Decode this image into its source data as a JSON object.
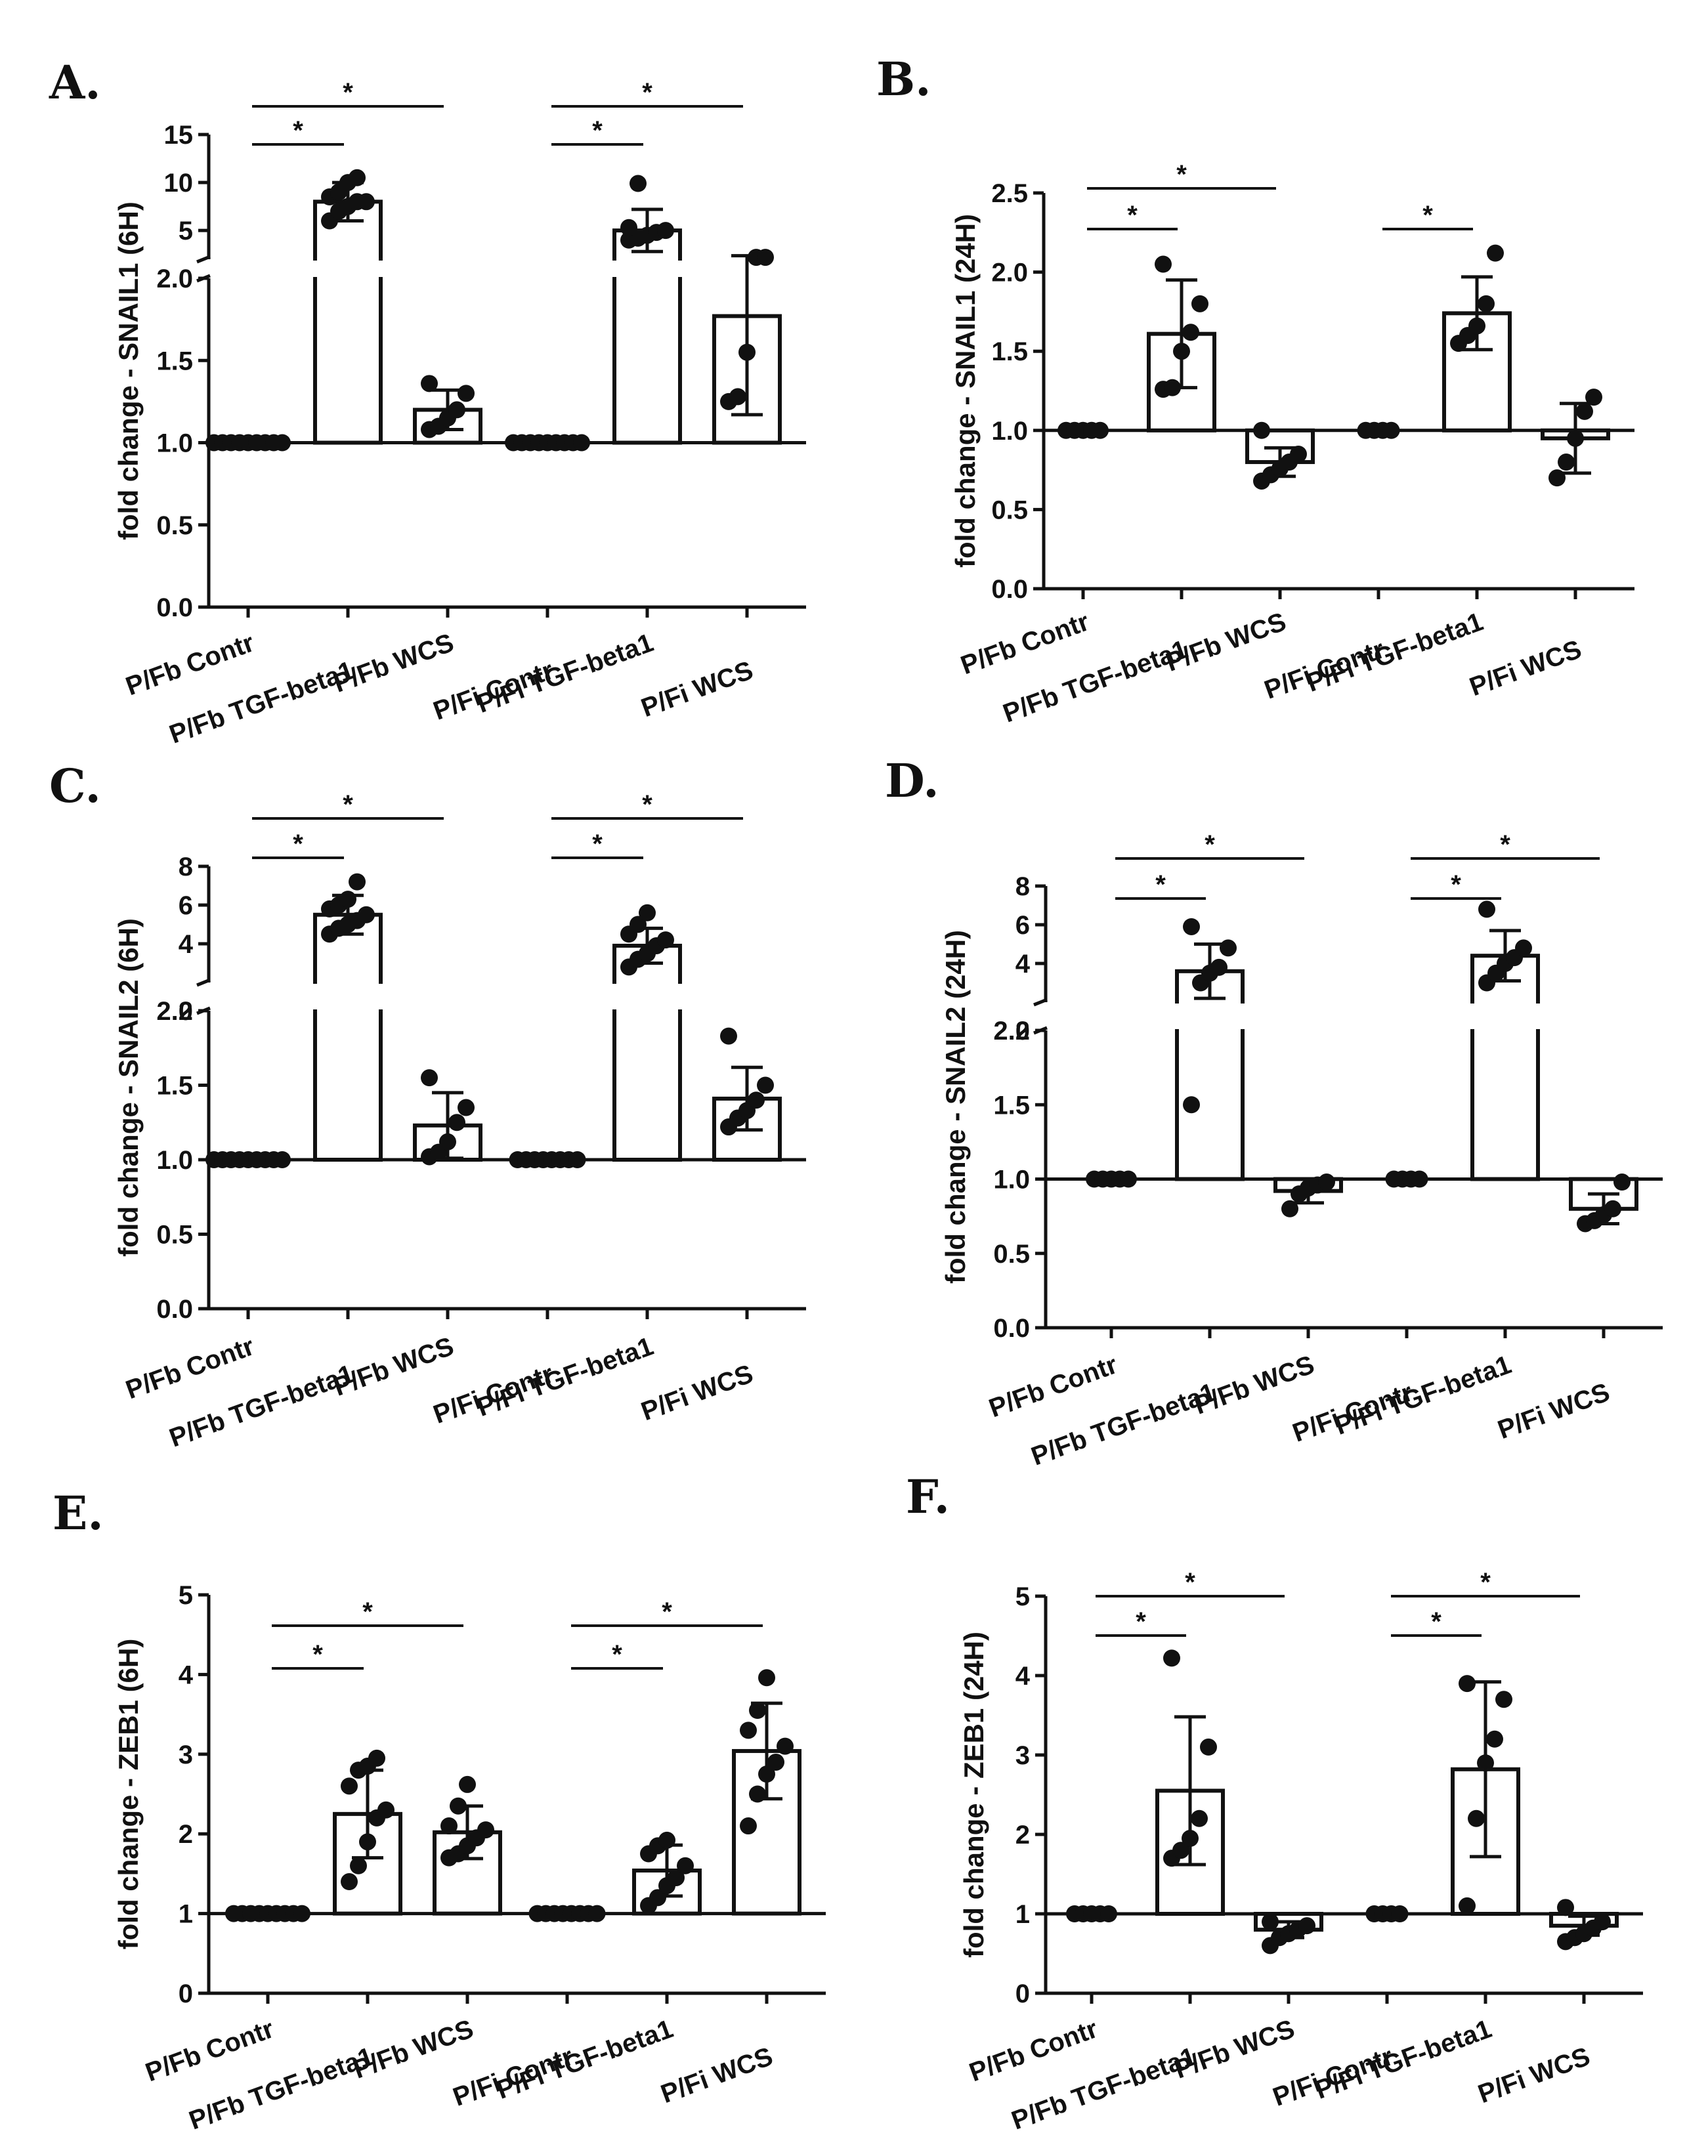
{
  "figure": {
    "domain": "Chart",
    "description": "Six bar charts of fold change (mean ± SD with individual points)"
  },
  "chart_data": [
    {
      "type": "bar",
      "panel": "A.",
      "ylabel": "fold change - SNAIL1 (6H)",
      "categories": [
        "P/Fb Contr",
        "P/Fb TGF-beta1",
        "P/Fb WCS",
        "P/Fi Contr",
        "P/Fi TGF-beta1",
        "P/Fi WCS"
      ],
      "values": [
        1.0,
        8.0,
        1.2,
        1.0,
        5.0,
        1.77
      ],
      "errors": [
        0,
        2.0,
        0.12,
        0,
        2.2,
        0.6
      ],
      "points": [
        [
          1,
          1,
          1,
          1,
          1,
          1,
          1,
          1,
          1
        ],
        [
          6,
          7,
          7.5,
          8,
          8,
          8.5,
          9,
          10,
          10.5
        ],
        [
          1.08,
          1.1,
          1.15,
          1.2,
          1.3,
          1.36
        ],
        [
          1,
          1,
          1,
          1,
          1,
          1,
          1,
          1,
          1
        ],
        [
          4,
          4.2,
          4.5,
          4.8,
          5,
          5.3,
          9.9
        ],
        [
          1.25,
          1.28,
          1.55,
          2.2,
          2.2
        ]
      ],
      "axis": {
        "broken": true,
        "lower_ticks": [
          "0.0",
          "0.5",
          "1.0",
          "1.5",
          "2.0"
        ],
        "lower_range": [
          0,
          2
        ],
        "upper_ticks": [
          "5",
          "10",
          "15"
        ],
        "upper_range": [
          2,
          15
        ]
      },
      "significance": [
        {
          "from": 0,
          "to": 1,
          "label": "*"
        },
        {
          "from": 0,
          "to": 2,
          "label": "*"
        },
        {
          "from": 3,
          "to": 4,
          "label": "*"
        },
        {
          "from": 3,
          "to": 5,
          "label": "*"
        }
      ]
    },
    {
      "type": "bar",
      "panel": "B.",
      "ylabel": "fold change - SNAIL1 (24H)",
      "categories": [
        "P/Fb Contr",
        "P/Fb TGF-beta1",
        "P/Fb WCS",
        "P/Fi Contr",
        "P/Fi TGF-beta1",
        "P/Fi WCS"
      ],
      "values": [
        1.0,
        1.61,
        0.8,
        1.0,
        1.74,
        0.95
      ],
      "errors": [
        0,
        0.34,
        0.09,
        0,
        0.23,
        0.22
      ],
      "points": [
        [
          1,
          1,
          1,
          1,
          1
        ],
        [
          1.26,
          1.27,
          1.5,
          1.62,
          1.8,
          2.05
        ],
        [
          0.68,
          0.72,
          0.76,
          0.8,
          0.85,
          1.0
        ],
        [
          1,
          1,
          1,
          1
        ],
        [
          1.55,
          1.6,
          1.66,
          1.8,
          2.12
        ],
        [
          0.7,
          0.8,
          0.95,
          1.12,
          1.21
        ]
      ],
      "axis": {
        "broken": false,
        "ticks": [
          "0.0",
          "0.5",
          "1.0",
          "1.5",
          "2.0",
          "2.5"
        ],
        "range": [
          0,
          2.5
        ]
      },
      "significance": [
        {
          "from": 0,
          "to": 1,
          "label": "*"
        },
        {
          "from": 0,
          "to": 2,
          "label": "*"
        },
        {
          "from": 3,
          "to": 4,
          "label": "*"
        }
      ]
    },
    {
      "type": "bar",
      "panel": "C.",
      "ylabel": "fold change - SNAIL2 (6H)",
      "categories": [
        "P/Fb Contr",
        "P/Fb TGF-beta1",
        "P/Fb WCS",
        "P/Fi Contr",
        "P/Fi TGF-beta1",
        "P/Fi WCS"
      ],
      "values": [
        1.0,
        5.5,
        1.23,
        1.0,
        3.9,
        1.41
      ],
      "errors": [
        0,
        1.0,
        0.22,
        0,
        0.9,
        0.21
      ],
      "points": [
        [
          1,
          1,
          1,
          1,
          1,
          1,
          1,
          1,
          1
        ],
        [
          4.5,
          4.8,
          5,
          5.2,
          5.5,
          5.8,
          6,
          6.3,
          7.2
        ],
        [
          1.02,
          1.05,
          1.12,
          1.25,
          1.35,
          1.55
        ],
        [
          1,
          1,
          1,
          1,
          1,
          1,
          1,
          1
        ],
        [
          2.8,
          3.2,
          3.5,
          3.9,
          4.2,
          4.5,
          5,
          5.6
        ],
        [
          1.22,
          1.28,
          1.33,
          1.4,
          1.5,
          1.83
        ]
      ],
      "axis": {
        "broken": true,
        "lower_ticks": [
          "0.0",
          "0.5",
          "1.0",
          "1.5",
          "2.0"
        ],
        "lower_range": [
          0,
          2
        ],
        "upper_ticks": [
          "2",
          "4",
          "6",
          "8"
        ],
        "upper_range": [
          2,
          8
        ]
      },
      "significance": [
        {
          "from": 0,
          "to": 1,
          "label": "*"
        },
        {
          "from": 0,
          "to": 2,
          "label": "*"
        },
        {
          "from": 3,
          "to": 4,
          "label": "*"
        },
        {
          "from": 3,
          "to": 5,
          "label": "*"
        }
      ]
    },
    {
      "type": "bar",
      "panel": "D.",
      "ylabel": "fold change - SNAIL2 (24H)",
      "categories": [
        "P/Fb Contr",
        "P/Fb TGF-beta1",
        "P/Fb WCS",
        "P/Fi Contr",
        "P/Fi TGF-beta1",
        "P/Fi WCS"
      ],
      "values": [
        1.0,
        3.6,
        0.92,
        1.0,
        4.4,
        0.8
      ],
      "errors": [
        0,
        1.4,
        0.08,
        0,
        1.3,
        0.1
      ],
      "points": [
        [
          1,
          1,
          1,
          1,
          1
        ],
        [
          1.5,
          3,
          3.5,
          3.8,
          4.8,
          5.9
        ],
        [
          0.8,
          0.9,
          0.94,
          0.96,
          0.98
        ],
        [
          1,
          1,
          1,
          1
        ],
        [
          3,
          3.5,
          4,
          4.3,
          4.8,
          6.8
        ],
        [
          0.7,
          0.72,
          0.76,
          0.8,
          0.98
        ]
      ],
      "axis": {
        "broken": true,
        "lower_ticks": [
          "0.0",
          "0.5",
          "1.0",
          "1.5",
          "2.0"
        ],
        "lower_range": [
          0,
          2
        ],
        "upper_ticks": [
          "2",
          "4",
          "6",
          "8"
        ],
        "upper_range": [
          2,
          8
        ]
      },
      "significance": [
        {
          "from": 0,
          "to": 1,
          "label": "*"
        },
        {
          "from": 0,
          "to": 2,
          "label": "*"
        },
        {
          "from": 3,
          "to": 4,
          "label": "*"
        },
        {
          "from": 3,
          "to": 5,
          "label": "*"
        }
      ]
    },
    {
      "type": "bar",
      "panel": "E.",
      "ylabel": "fold change - ZEB1 (6H)",
      "categories": [
        "P/Fb Contr",
        "P/Fb TGF-beta1",
        "P/Fb WCS",
        "P/Fi Contr",
        "P/Fi TGF-beta1",
        "P/Fi WCS"
      ],
      "values": [
        1.0,
        2.25,
        2.02,
        1.0,
        1.54,
        3.04
      ],
      "errors": [
        0,
        0.55,
        0.33,
        0,
        0.32,
        0.6
      ],
      "points": [
        [
          1,
          1,
          1,
          1,
          1,
          1,
          1,
          1,
          1
        ],
        [
          1.4,
          1.6,
          1.9,
          2.2,
          2.3,
          2.6,
          2.8,
          2.85,
          2.95
        ],
        [
          1.7,
          1.75,
          1.85,
          1.95,
          2.05,
          2.1,
          2.35,
          2.62
        ],
        [
          1,
          1,
          1,
          1,
          1,
          1,
          1,
          1
        ],
        [
          1.1,
          1.2,
          1.35,
          1.45,
          1.6,
          1.75,
          1.85,
          1.92
        ],
        [
          2.1,
          2.5,
          2.75,
          2.9,
          3.1,
          3.3,
          3.55,
          3.96
        ]
      ],
      "axis": {
        "broken": false,
        "ticks": [
          "0",
          "1",
          "2",
          "3",
          "4",
          "5"
        ],
        "range": [
          0,
          5
        ]
      },
      "significance": [
        {
          "from": 0,
          "to": 1,
          "label": "*"
        },
        {
          "from": 0,
          "to": 2,
          "label": "*"
        },
        {
          "from": 3,
          "to": 4,
          "label": "*"
        },
        {
          "from": 3,
          "to": 5,
          "label": "*"
        }
      ]
    },
    {
      "type": "bar",
      "panel": "F.",
      "ylabel": "fold change - ZEB1 (24H)",
      "categories": [
        "P/Fb Contr",
        "P/Fb TGF-beta1",
        "P/Fb WCS",
        "P/Fi Contr",
        "P/Fi TGF-beta1",
        "P/Fi WCS"
      ],
      "values": [
        1.0,
        2.55,
        0.8,
        1.0,
        2.82,
        0.85
      ],
      "errors": [
        0,
        0.93,
        0.1,
        0,
        1.1,
        0.12
      ],
      "points": [
        [
          1,
          1,
          1,
          1,
          1
        ],
        [
          1.7,
          1.8,
          1.95,
          2.2,
          3.1,
          4.22
        ],
        [
          0.6,
          0.7,
          0.75,
          0.8,
          0.85,
          0.9
        ],
        [
          1,
          1,
          1,
          1
        ],
        [
          1.1,
          2.2,
          2.9,
          3.2,
          3.7,
          3.9
        ],
        [
          0.65,
          0.7,
          0.75,
          0.82,
          0.9,
          1.08
        ]
      ],
      "axis": {
        "broken": false,
        "ticks": [
          "0",
          "1",
          "2",
          "3",
          "4",
          "5"
        ],
        "range": [
          0,
          5
        ]
      },
      "significance": [
        {
          "from": 0,
          "to": 1,
          "label": "*"
        },
        {
          "from": 0,
          "to": 2,
          "label": "*"
        },
        {
          "from": 3,
          "to": 4,
          "label": "*"
        },
        {
          "from": 3,
          "to": 5,
          "label": "*"
        }
      ]
    }
  ]
}
